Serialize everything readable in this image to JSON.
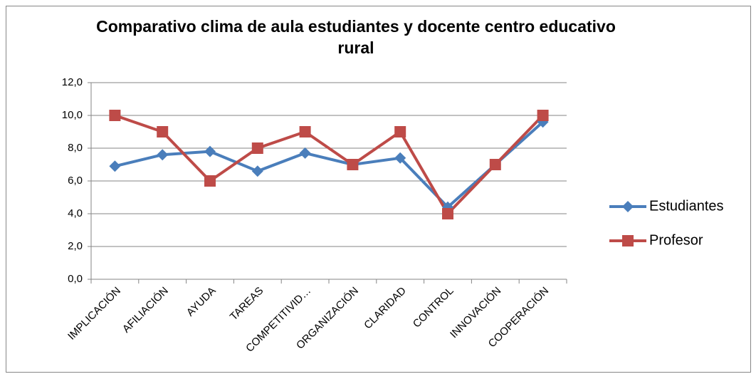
{
  "chart_data": {
    "type": "line",
    "title": "Comparativo clima de aula estudiantes y docente centro educativo rural",
    "categories": [
      "IMPLICACIÓN",
      "AFILIACIÓN",
      "AYUDA",
      "TAREAS",
      "COMPETITIVID…",
      "ORGANIZACIÓN",
      "CLARIDAD",
      "CONTROL",
      "INNOVACIÓN",
      "COOPERACIÓN"
    ],
    "series": [
      {
        "name": "Estudiantes",
        "color": "#4a7ebb",
        "marker": "diamond",
        "values": [
          6.9,
          7.6,
          7.8,
          6.6,
          7.7,
          7.0,
          7.4,
          4.4,
          7.0,
          9.6
        ]
      },
      {
        "name": "Profesor",
        "color": "#be4b48",
        "marker": "square",
        "values": [
          10,
          9,
          6,
          8,
          9,
          7,
          9,
          4,
          7,
          10
        ]
      }
    ],
    "ylim": [
      0,
      12
    ],
    "yticks": [
      {
        "value": 0,
        "label": "0,0"
      },
      {
        "value": 2,
        "label": "2,0"
      },
      {
        "value": 4,
        "label": "4,0"
      },
      {
        "value": 6,
        "label": "6,0"
      },
      {
        "value": 8,
        "label": "8,0"
      },
      {
        "value": 10,
        "label": "10,0"
      },
      {
        "value": 12,
        "label": "12,0"
      }
    ],
    "grid": true,
    "legend": "right"
  }
}
